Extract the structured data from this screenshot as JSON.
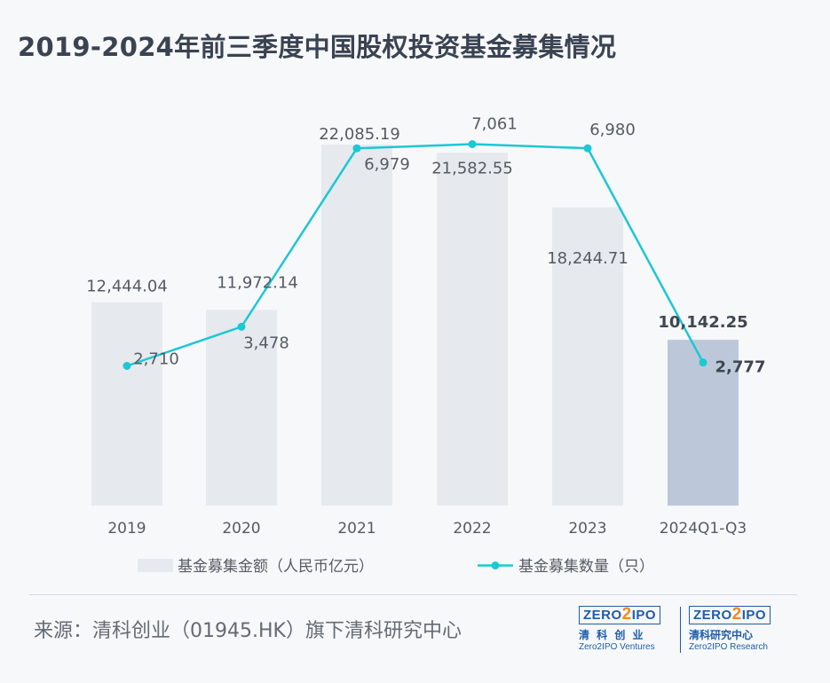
{
  "title": "2019-2024年前三季度中国股权投资基金募集情况",
  "source": "来源：清科创业（01945.HK）旗下清科研究中心",
  "logos": [
    {
      "box": "ZERO",
      "two": "2",
      "box2": "IPO",
      "cn": "清 科 创 业",
      "en": "Zero2IPO Ventures"
    },
    {
      "box": "ZERO",
      "two": "2",
      "box2": "IPO",
      "cn": "清科研究中心",
      "en": "Zero2IPO Research"
    }
  ],
  "chart_data": {
    "type": "bar",
    "categories": [
      "2019",
      "2020",
      "2021",
      "2022",
      "2023",
      "2024Q1-Q3"
    ],
    "series": [
      {
        "name": "基金募集金额（人民币亿元）",
        "type": "bar",
        "values": [
          12444.04,
          11972.14,
          22085.19,
          21582.55,
          18244.71,
          10142.25
        ],
        "labels": [
          "12,444.04",
          "11,972.14",
          "22,085.19",
          "21,582.55",
          "18,244.71",
          "10,142.25"
        ]
      },
      {
        "name": "基金募集数量（只）",
        "type": "line",
        "values": [
          2710,
          3478,
          6979,
          7061,
          6980,
          2777
        ],
        "labels": [
          "2,710",
          "3,478",
          "6,979",
          "7,061",
          "6,980",
          "2,777"
        ]
      }
    ],
    "colors": {
      "bar": "#e6e9ee",
      "bar_highlight": "#bcc8d9",
      "line": "#1dc7d4",
      "text": "#555b63",
      "text_bold": "#3f4650"
    },
    "highlight_index": 5,
    "legend_position": "bottom",
    "grid": false
  }
}
